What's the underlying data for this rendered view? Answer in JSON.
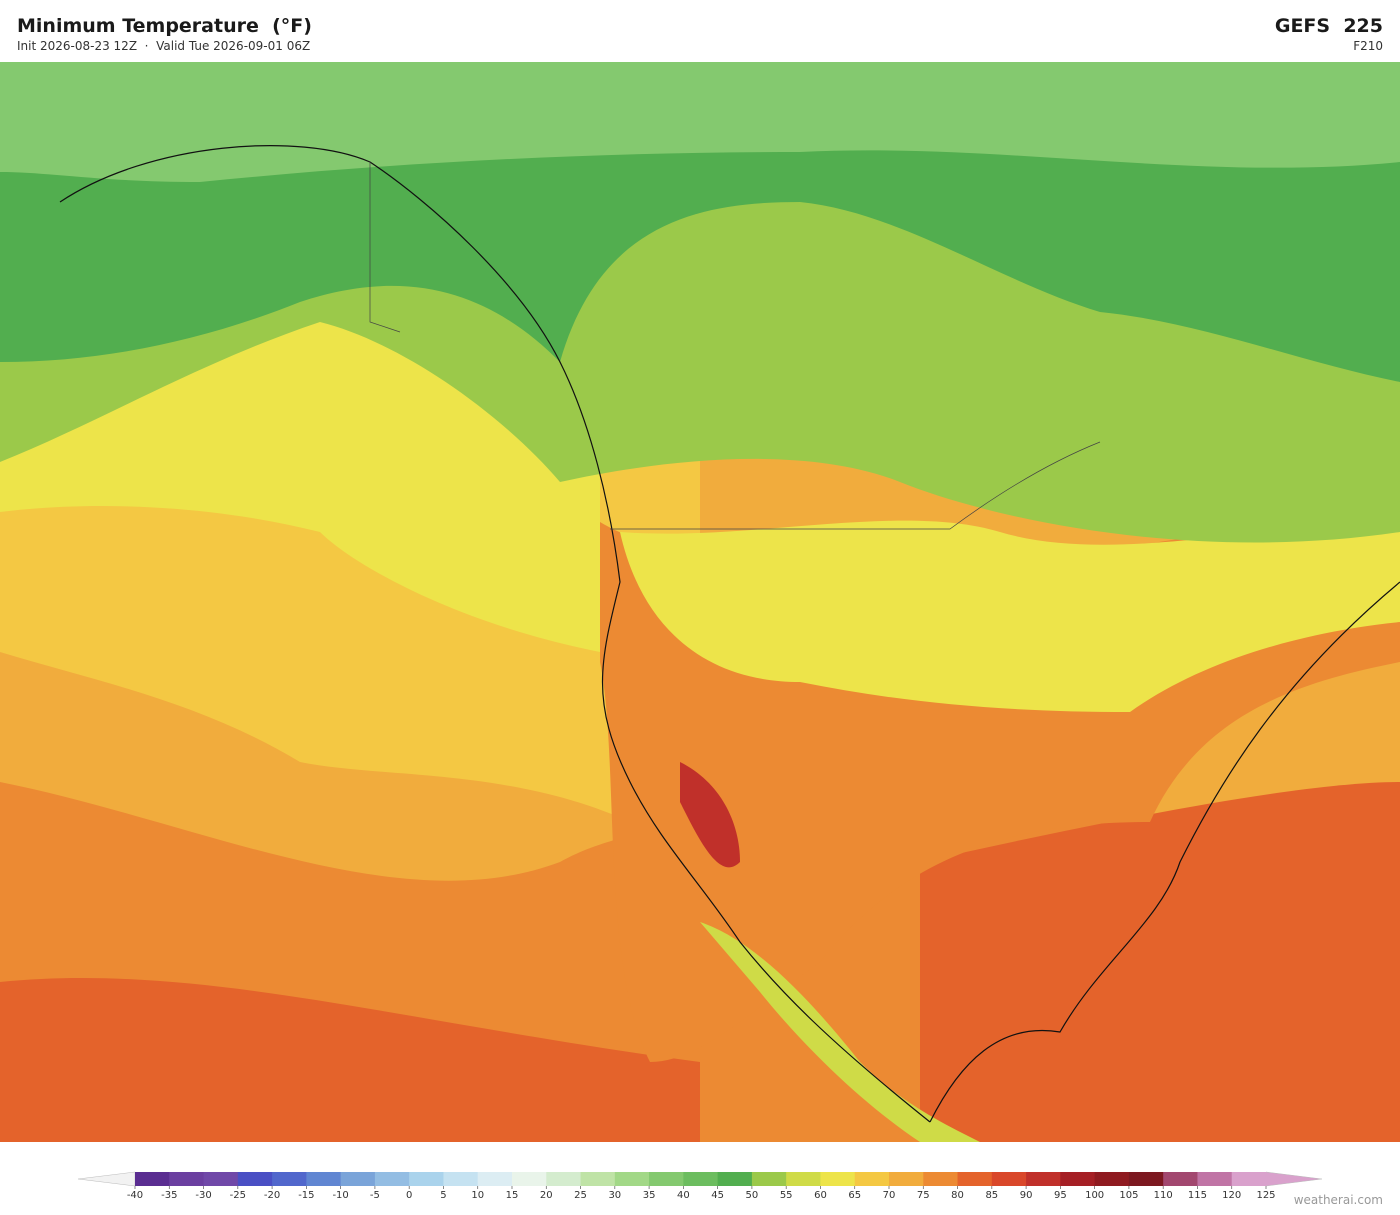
{
  "header": {
    "title": "Minimum Temperature  (°F)",
    "subtitle": "Init 2026-08-23 12Z  ·  Valid Tue 2026-09-01 06Z",
    "model": "GEFS  225",
    "forecast_hour": "F210"
  },
  "colorbar": {
    "ticks": [
      -40,
      -35,
      -30,
      -25,
      -20,
      -15,
      -10,
      -5,
      0,
      5,
      10,
      15,
      20,
      25,
      30,
      35,
      40,
      45,
      50,
      55,
      60,
      65,
      70,
      75,
      80,
      85,
      90,
      95,
      100,
      105,
      110,
      115,
      120,
      125
    ],
    "colors": [
      "#5a2d91",
      "#6b3fa0",
      "#7048a8",
      "#4a4fc4",
      "#5167cc",
      "#6086d2",
      "#7aa4d9",
      "#93bde3",
      "#aad3ec",
      "#c5e2f1",
      "#dcedf3",
      "#e9f4ea",
      "#d4ecce",
      "#bfe3a6",
      "#a2d887",
      "#84c96f",
      "#6cbd5f",
      "#52ae4f",
      "#9bc94a",
      "#cfdb47",
      "#ede44a",
      "#f4c843",
      "#f1ac3d",
      "#ec8a33",
      "#e4632b",
      "#d9472a",
      "#c0302a",
      "#a51f25",
      "#8f1a20",
      "#7c1820",
      "#a2476f",
      "#c074a5",
      "#d9a1cc"
    ]
  },
  "watermark": "weatherai.com"
}
